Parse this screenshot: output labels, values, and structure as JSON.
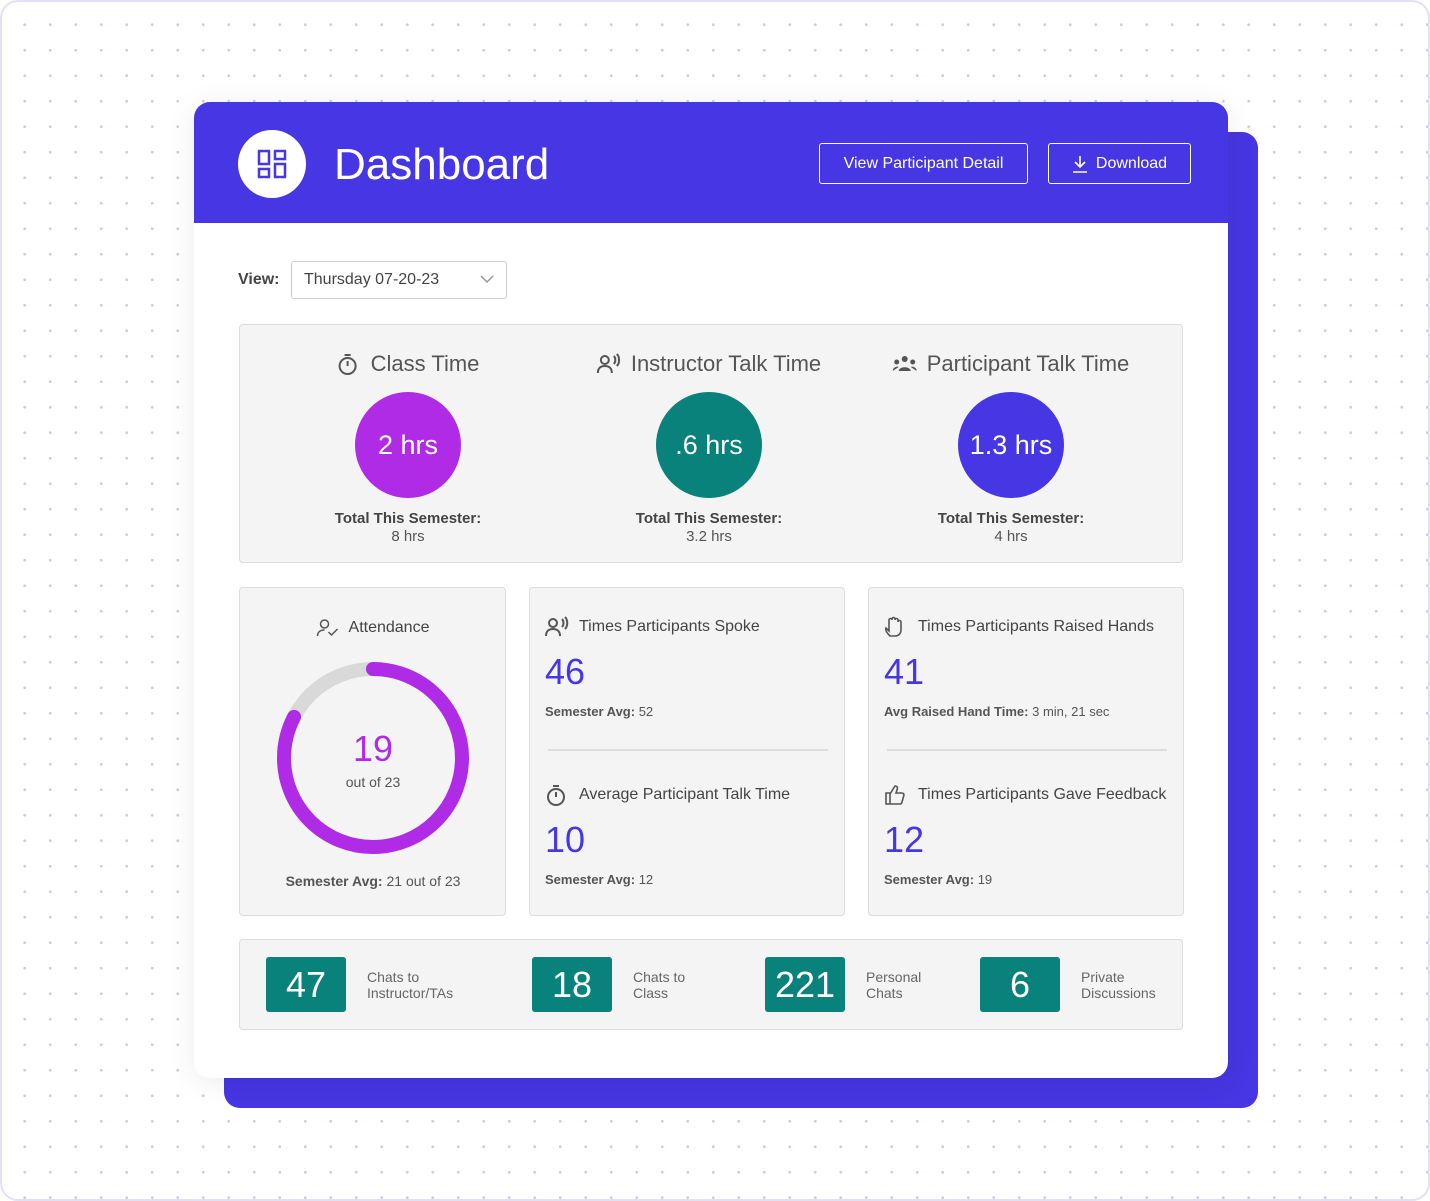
{
  "header": {
    "title": "Dashboard",
    "buttons": [
      "View Participant Detail",
      "Download"
    ]
  },
  "filter": {
    "label": "View:",
    "value": "Thursday 07-20-23"
  },
  "summary": [
    {
      "title": "Class Time",
      "value": "2 hrs",
      "total_label": "Total This Semester:",
      "total": "8 hrs"
    },
    {
      "title": "Instructor Talk Time",
      "value": ".6 hrs",
      "total_label": "Total This Semester:",
      "total": "3.2 hrs"
    },
    {
      "title": "Participant Talk Time",
      "value": "1.3 hrs",
      "total_label": "Total This Semester:",
      "total": "4 hrs"
    }
  ],
  "attendance": {
    "title": "Attendance",
    "value": 19,
    "total": 23,
    "total_label": "out of 23",
    "avg_label": "Semester Avg:",
    "avg": "21 out of 23"
  },
  "stats": [
    {
      "title": "Times Participants Spoke",
      "value": 46,
      "note_label": "Semester Avg:",
      "note": 52
    },
    {
      "title": "Average Participant Talk Time",
      "value": 10,
      "note_label": "Semester Avg:",
      "note": 12
    },
    {
      "title": "Times Participants Raised Hands",
      "value": 41,
      "note_label": "Avg Raised Hand Time:",
      "note": "3 min, 21 sec"
    },
    {
      "title": "Times Participants Gave Feedback",
      "value": 12,
      "note_label": "Semester Avg:",
      "note": 19
    }
  ],
  "chats": [
    {
      "value": 47,
      "label": [
        "Chats to",
        "Instructor/TAs"
      ]
    },
    {
      "value": 18,
      "label": [
        "Chats to",
        "Class"
      ]
    },
    {
      "value": 221,
      "label": [
        "Personal",
        "Chats"
      ]
    },
    {
      "value": 6,
      "label": [
        "Private",
        "Discussions"
      ]
    }
  ]
}
